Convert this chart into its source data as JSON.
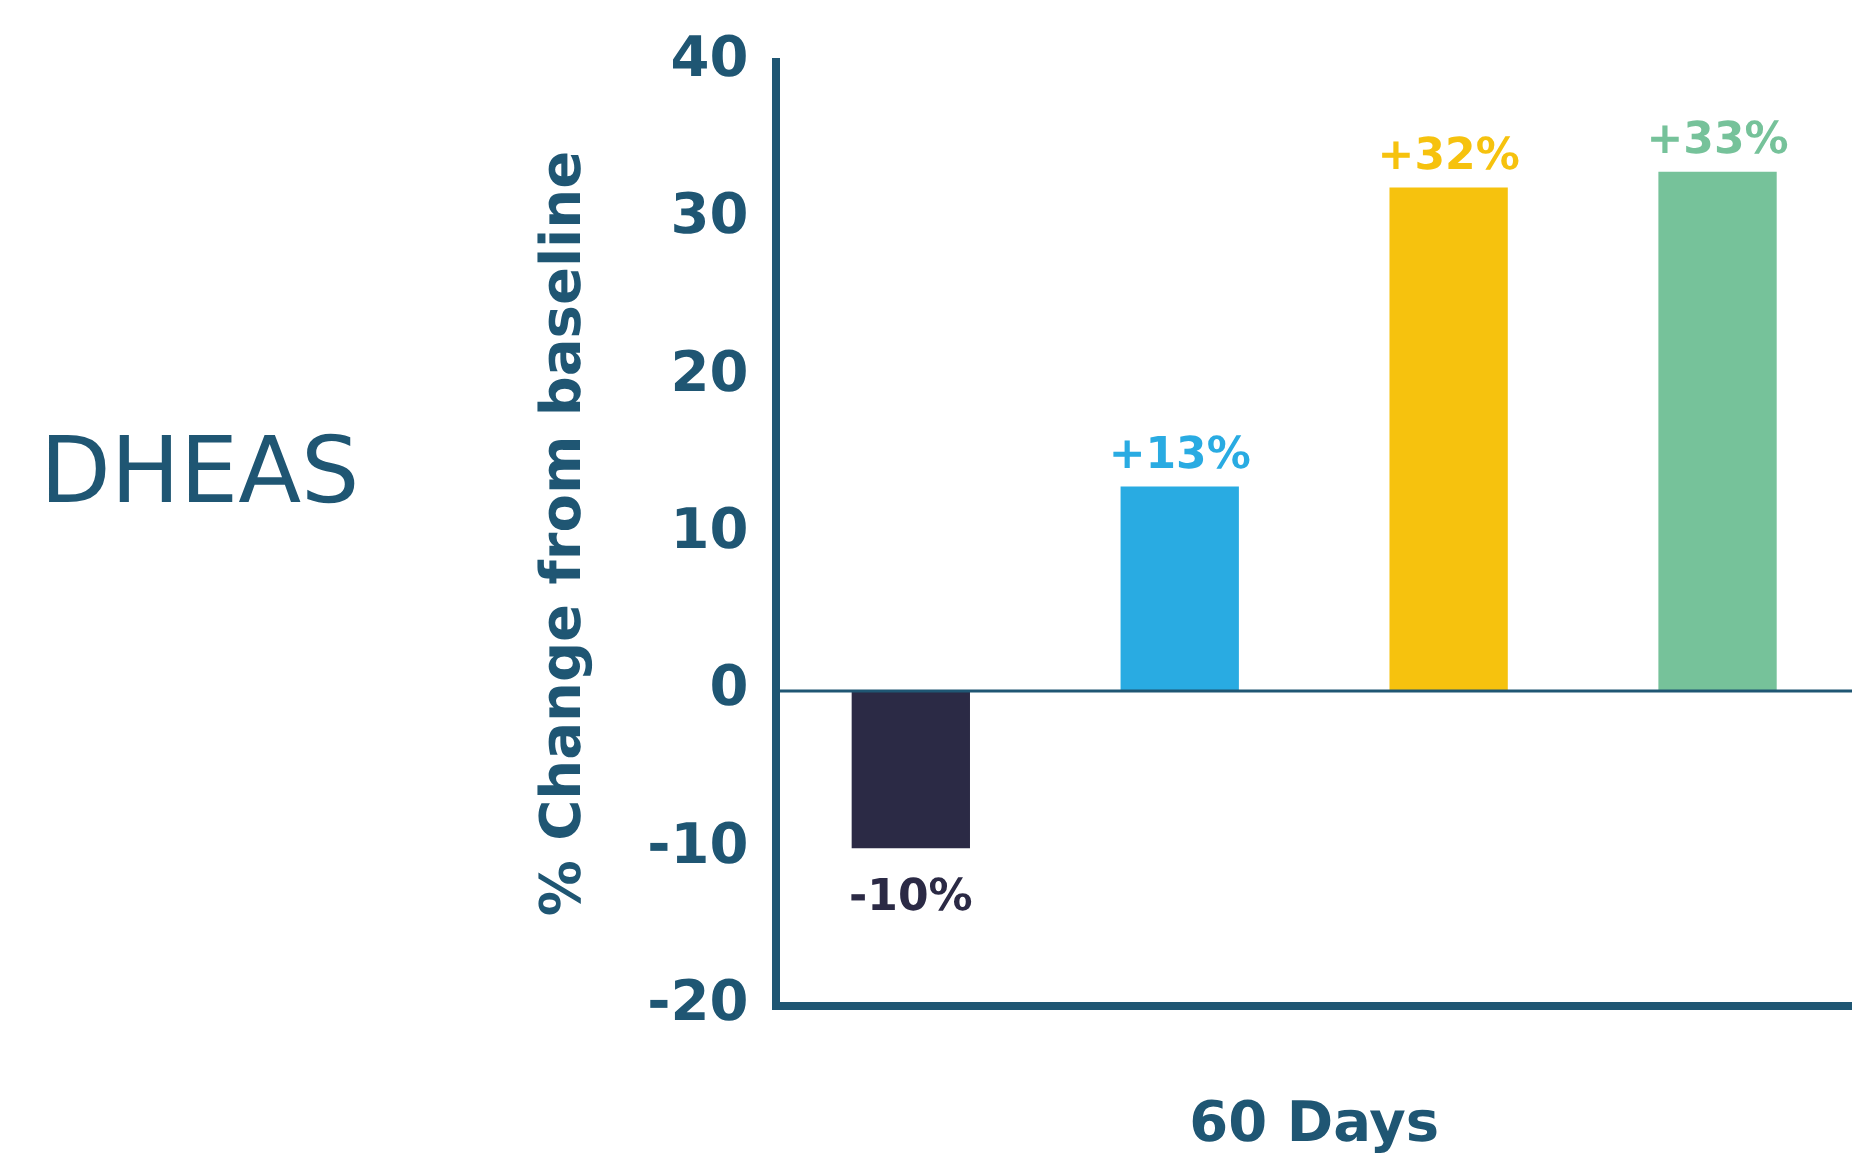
{
  "chart_data": {
    "type": "bar",
    "title": "DHEAS",
    "ylabel": "% Change from baseline",
    "xlabel": "60 Days",
    "categories": [
      null,
      null,
      null,
      null
    ],
    "values": [
      -10,
      13,
      32,
      33
    ],
    "colors": [
      "#2b2a45",
      "#29abe2",
      "#f6c20e",
      "#76c29a"
    ],
    "value_labels": [
      "-10%",
      "+13%",
      "+32%",
      "+33%"
    ],
    "ylim": [
      -20,
      40
    ],
    "yticks": [
      -20,
      -10,
      0,
      10,
      20,
      30,
      40
    ],
    "grid": false,
    "legend": false,
    "ref_lines": [
      {
        "axis": "y",
        "value": 0,
        "color": "#1f5673"
      }
    ]
  }
}
